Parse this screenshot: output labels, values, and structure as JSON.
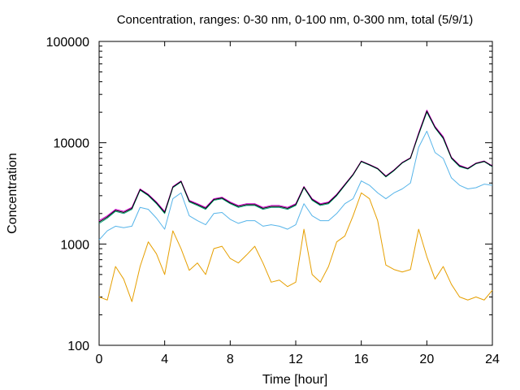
{
  "chart_data": {
    "type": "line",
    "title": "Concentration, ranges: 0-30 nm, 0-100 nm, 0-300 nm, total (5/9/1)",
    "xlabel": "Time [hour]",
    "ylabel": "Concentration",
    "xlim": [
      0,
      24
    ],
    "ylim": [
      100,
      100000
    ],
    "yscale": "log",
    "grid": false,
    "legend": "none",
    "x_ticks": [
      "0",
      "4",
      "8",
      "12",
      "16",
      "20",
      "24"
    ],
    "y_ticks": [
      "100",
      "1000",
      "10000",
      "100000"
    ],
    "x": [
      0,
      0.5,
      1,
      1.5,
      2,
      2.5,
      3,
      3.5,
      4,
      4.5,
      5,
      5.5,
      6,
      6.5,
      7,
      7.5,
      8,
      8.5,
      9,
      9.5,
      10,
      10.5,
      11,
      11.5,
      12,
      12.5,
      13,
      13.5,
      14,
      14.5,
      15,
      15.5,
      16,
      16.5,
      17,
      17.5,
      18,
      18.5,
      19,
      19.5,
      20,
      20.5,
      21,
      21.5,
      22,
      22.5,
      23,
      23.5,
      24
    ],
    "series": [
      {
        "color": "#e69f00",
        "values": [
          300,
          280,
          600,
          450,
          270,
          600,
          1050,
          800,
          500,
          1350,
          900,
          550,
          650,
          500,
          900,
          950,
          720,
          650,
          780,
          950,
          650,
          420,
          440,
          380,
          420,
          1400,
          500,
          420,
          600,
          1050,
          1200,
          1900,
          3200,
          2800,
          1700,
          620,
          560,
          530,
          560,
          1400,
          750,
          450,
          600,
          400,
          300,
          280,
          300,
          280,
          350
        ]
      },
      {
        "color": "#56b4e9",
        "values": [
          1100,
          1350,
          1500,
          1450,
          1500,
          2300,
          2200,
          1800,
          1400,
          2800,
          3200,
          1900,
          1700,
          1550,
          2000,
          2050,
          1750,
          1600,
          1700,
          1700,
          1500,
          1550,
          1500,
          1400,
          1550,
          2500,
          1900,
          1700,
          1700,
          2000,
          2500,
          2800,
          4200,
          3800,
          3200,
          2800,
          3200,
          3500,
          4000,
          9000,
          13000,
          8000,
          7000,
          4500,
          3800,
          3500,
          3600,
          3900,
          3800
        ]
      },
      {
        "color": "#009e73",
        "values": [
          1600,
          1800,
          2100,
          2000,
          2200,
          3400,
          3000,
          2500,
          2000,
          3600,
          4100,
          2600,
          2400,
          2200,
          2700,
          2800,
          2500,
          2300,
          2400,
          2400,
          2200,
          2300,
          2300,
          2200,
          2400,
          3600,
          2700,
          2400,
          2500,
          3000,
          3800,
          4800,
          6500,
          6000,
          5500,
          4600,
          5300,
          6300,
          7000,
          12000,
          20000,
          14000,
          11000,
          7000,
          5800,
          5500,
          6200,
          6500,
          5800
        ]
      },
      {
        "color": "#cc00cc",
        "values": [
          1700,
          1900,
          2200,
          2100,
          2300,
          3500,
          3100,
          2600,
          2100,
          3700,
          4200,
          2700,
          2500,
          2300,
          2800,
          2900,
          2600,
          2400,
          2500,
          2500,
          2300,
          2400,
          2400,
          2300,
          2500,
          3700,
          2800,
          2500,
          2600,
          3100,
          3900,
          4900,
          6600,
          6100,
          5600,
          4700,
          5400,
          6400,
          7100,
          12500,
          21000,
          14500,
          11500,
          7200,
          6000,
          5600,
          6300,
          6600,
          5900
        ]
      },
      {
        "color": "#000000",
        "values": [
          1650,
          1850,
          2150,
          2050,
          2250,
          3450,
          3050,
          2550,
          2050,
          3650,
          4150,
          2650,
          2450,
          2250,
          2750,
          2850,
          2550,
          2350,
          2450,
          2450,
          2250,
          2350,
          2350,
          2250,
          2450,
          3650,
          2750,
          2450,
          2550,
          3050,
          3850,
          4850,
          6550,
          6050,
          5550,
          4650,
          5350,
          6350,
          7050,
          12200,
          20500,
          14200,
          11200,
          7100,
          5900,
          5550,
          6250,
          6550,
          5850
        ]
      }
    ]
  }
}
